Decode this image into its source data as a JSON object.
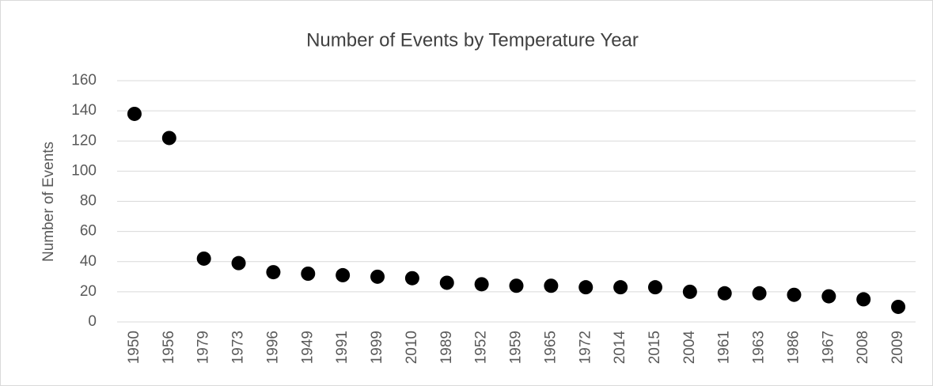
{
  "chart_data": {
    "type": "scatter",
    "title": "Number of Events by Temperature Year",
    "y_label": "Number of Events",
    "categories": [
      "1950",
      "1956",
      "1979",
      "1973",
      "1996",
      "1949",
      "1991",
      "1999",
      "2010",
      "1989",
      "1952",
      "1959",
      "1965",
      "1972",
      "2014",
      "2015",
      "2004",
      "1961",
      "1963",
      "1986",
      "1967",
      "2008",
      "2009"
    ],
    "values": [
      138,
      122,
      42,
      39,
      33,
      32,
      31,
      30,
      29,
      26,
      25,
      24,
      24,
      23,
      23,
      23,
      20,
      19,
      19,
      18,
      17,
      15,
      10
    ],
    "color": "#000000",
    "ylim": [
      0,
      160
    ],
    "yticks": [
      0,
      20,
      40,
      60,
      80,
      100,
      120,
      140,
      160
    ],
    "grid": true
  }
}
